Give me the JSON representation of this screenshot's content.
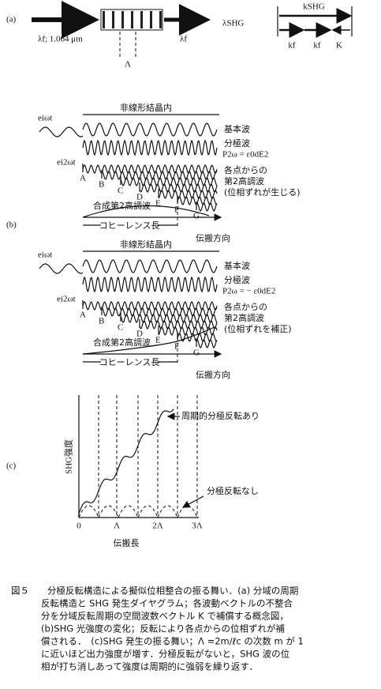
{
  "panel_a": {
    "label": "(a)",
    "input": "λf; 1.064 μm",
    "period": "Λ",
    "output_shg": "λSHG",
    "output_f": "λf",
    "k_shg": "kSHG",
    "k_f1": "kf",
    "k_f2": "kf",
    "k_K": "K"
  },
  "panel_b1": {
    "label": "",
    "e_w": "eiωt",
    "title": "非線形結晶内",
    "fundamental": "基本波",
    "polarization": "分極波",
    "formula": "P2ω = ε0dE2",
    "e_2w": "ei2ωt",
    "points": [
      "A",
      "B",
      "C",
      "D",
      "E",
      "F",
      "G"
    ],
    "sh_line1": "各点からの",
    "sh_line2": "第2高調波",
    "sh_line3": "(位相ずれが生じる)",
    "combined": "合成第2高調波",
    "coherence": "コヒーレンス長",
    "direction": "伝搬方向"
  },
  "panel_b2": {
    "label": "(b)",
    "e_w": "eiωt",
    "title": "非線形結晶内",
    "fundamental": "基本波",
    "polarization": "分極波",
    "formula": "P2ω = − ε0dE2",
    "e_2w": "ei2ωt",
    "points": [
      "A",
      "B",
      "C",
      "D",
      "E",
      "F",
      "G"
    ],
    "sh_line1": "各点からの",
    "sh_line2": "第2高調波",
    "sh_line3": "(位相ずれを補正)",
    "combined": "合成第2高調波",
    "coherence": "コヒーレンス長",
    "direction": "伝搬方向"
  },
  "panel_c": {
    "label": "(c)",
    "y_label": "SHG強度",
    "with_inversion": "周期的分極反転あり",
    "without_inversion": "分極反転なし",
    "x_ticks": [
      "0",
      "Λ",
      "2Λ",
      "3Λ"
    ],
    "x_label": "伝搬長"
  },
  "caption": {
    "figure": "図５",
    "lines": [
      "分極反転構造による擬似位相整合の振る舞い．(a) 分域の周期",
      "反転構造と SHG 発生ダイヤグラム；各波動ベクトルの不整合",
      "分を分域反転周期の空間波数ベクトル K で補償する概念図，",
      "(b)SHG 光強度の変化；反転により各点からの位相ずれが補",
      "償される．　(c)SHG 発生の振る舞い；Λ =2m/ℓc の次数 m が 1",
      "に近いほど出力強度が増す．分極反転がないと，SHG 波の位",
      "相が打ち消しあって強度は周期的に強弱を繰り返す．"
    ]
  }
}
